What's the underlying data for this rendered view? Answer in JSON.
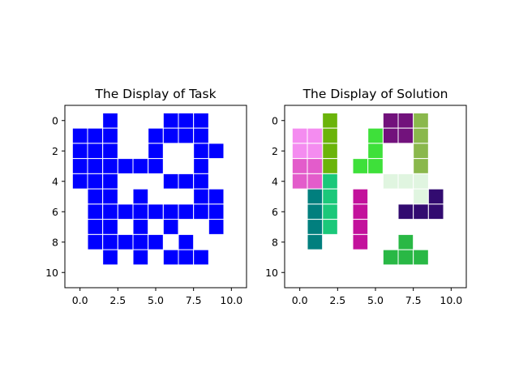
{
  "chart_data": [
    {
      "type": "heatmap",
      "title": "The Display of Task",
      "xlim": [
        -1,
        11
      ],
      "ylim": [
        11,
        -1
      ],
      "xticks": [
        0.0,
        2.5,
        5.0,
        7.5,
        10.0
      ],
      "xtick_labels": [
        "0.0",
        "2.5",
        "5.0",
        "7.5",
        "10.0"
      ],
      "yticks": [
        0,
        2,
        4,
        6,
        8,
        10
      ],
      "ytick_labels": [
        "0",
        "2",
        "4",
        "6",
        "8",
        "10"
      ],
      "grid": false,
      "cells": [
        {
          "x": 2,
          "y": 0,
          "color": "#0000ff"
        },
        {
          "x": 6,
          "y": 0,
          "color": "#0000ff"
        },
        {
          "x": 7,
          "y": 0,
          "color": "#0000ff"
        },
        {
          "x": 8,
          "y": 0,
          "color": "#0000ff"
        },
        {
          "x": 0,
          "y": 1,
          "color": "#0000ff"
        },
        {
          "x": 1,
          "y": 1,
          "color": "#0000ff"
        },
        {
          "x": 2,
          "y": 1,
          "color": "#0000ff"
        },
        {
          "x": 5,
          "y": 1,
          "color": "#0000ff"
        },
        {
          "x": 6,
          "y": 1,
          "color": "#0000ff"
        },
        {
          "x": 7,
          "y": 1,
          "color": "#0000ff"
        },
        {
          "x": 8,
          "y": 1,
          "color": "#0000ff"
        },
        {
          "x": 0,
          "y": 2,
          "color": "#0000ff"
        },
        {
          "x": 1,
          "y": 2,
          "color": "#0000ff"
        },
        {
          "x": 2,
          "y": 2,
          "color": "#0000ff"
        },
        {
          "x": 5,
          "y": 2,
          "color": "#0000ff"
        },
        {
          "x": 8,
          "y": 2,
          "color": "#0000ff"
        },
        {
          "x": 9,
          "y": 2,
          "color": "#0000ff"
        },
        {
          "x": 0,
          "y": 3,
          "color": "#0000ff"
        },
        {
          "x": 1,
          "y": 3,
          "color": "#0000ff"
        },
        {
          "x": 2,
          "y": 3,
          "color": "#0000ff"
        },
        {
          "x": 3,
          "y": 3,
          "color": "#0000ff"
        },
        {
          "x": 4,
          "y": 3,
          "color": "#0000ff"
        },
        {
          "x": 5,
          "y": 3,
          "color": "#0000ff"
        },
        {
          "x": 8,
          "y": 3,
          "color": "#0000ff"
        },
        {
          "x": 0,
          "y": 4,
          "color": "#0000ff"
        },
        {
          "x": 1,
          "y": 4,
          "color": "#0000ff"
        },
        {
          "x": 2,
          "y": 4,
          "color": "#0000ff"
        },
        {
          "x": 6,
          "y": 4,
          "color": "#0000ff"
        },
        {
          "x": 7,
          "y": 4,
          "color": "#0000ff"
        },
        {
          "x": 8,
          "y": 4,
          "color": "#0000ff"
        },
        {
          "x": 1,
          "y": 5,
          "color": "#0000ff"
        },
        {
          "x": 2,
          "y": 5,
          "color": "#0000ff"
        },
        {
          "x": 4,
          "y": 5,
          "color": "#0000ff"
        },
        {
          "x": 8,
          "y": 5,
          "color": "#0000ff"
        },
        {
          "x": 9,
          "y": 5,
          "color": "#0000ff"
        },
        {
          "x": 1,
          "y": 6,
          "color": "#0000ff"
        },
        {
          "x": 2,
          "y": 6,
          "color": "#0000ff"
        },
        {
          "x": 3,
          "y": 6,
          "color": "#0000ff"
        },
        {
          "x": 4,
          "y": 6,
          "color": "#0000ff"
        },
        {
          "x": 5,
          "y": 6,
          "color": "#0000ff"
        },
        {
          "x": 6,
          "y": 6,
          "color": "#0000ff"
        },
        {
          "x": 7,
          "y": 6,
          "color": "#0000ff"
        },
        {
          "x": 8,
          "y": 6,
          "color": "#0000ff"
        },
        {
          "x": 9,
          "y": 6,
          "color": "#0000ff"
        },
        {
          "x": 1,
          "y": 7,
          "color": "#0000ff"
        },
        {
          "x": 2,
          "y": 7,
          "color": "#0000ff"
        },
        {
          "x": 4,
          "y": 7,
          "color": "#0000ff"
        },
        {
          "x": 6,
          "y": 7,
          "color": "#0000ff"
        },
        {
          "x": 9,
          "y": 7,
          "color": "#0000ff"
        },
        {
          "x": 1,
          "y": 8,
          "color": "#0000ff"
        },
        {
          "x": 2,
          "y": 8,
          "color": "#0000ff"
        },
        {
          "x": 3,
          "y": 8,
          "color": "#0000ff"
        },
        {
          "x": 4,
          "y": 8,
          "color": "#0000ff"
        },
        {
          "x": 5,
          "y": 8,
          "color": "#0000ff"
        },
        {
          "x": 7,
          "y": 8,
          "color": "#0000ff"
        },
        {
          "x": 2,
          "y": 9,
          "color": "#0000ff"
        },
        {
          "x": 4,
          "y": 9,
          "color": "#0000ff"
        },
        {
          "x": 6,
          "y": 9,
          "color": "#0000ff"
        },
        {
          "x": 7,
          "y": 9,
          "color": "#0000ff"
        },
        {
          "x": 8,
          "y": 9,
          "color": "#0000ff"
        }
      ]
    },
    {
      "type": "heatmap",
      "title": "The Display of Solution",
      "xlim": [
        -1,
        11
      ],
      "ylim": [
        11,
        -1
      ],
      "xticks": [
        0.0,
        2.5,
        5.0,
        7.5,
        10.0
      ],
      "xtick_labels": [
        "0.0",
        "2.5",
        "5.0",
        "7.5",
        "10.0"
      ],
      "yticks": [
        0,
        2,
        4,
        6,
        8,
        10
      ],
      "ytick_labels": [
        "0",
        "2",
        "4",
        "6",
        "8",
        "10"
      ],
      "grid": false,
      "cells": [
        {
          "x": 2,
          "y": 0,
          "color": "#6bb40a"
        },
        {
          "x": 2,
          "y": 1,
          "color": "#6bb40a"
        },
        {
          "x": 2,
          "y": 2,
          "color": "#6bb40a"
        },
        {
          "x": 2,
          "y": 3,
          "color": "#6bb40a"
        },
        {
          "x": 6,
          "y": 0,
          "color": "#72127c"
        },
        {
          "x": 7,
          "y": 0,
          "color": "#72127c"
        },
        {
          "x": 6,
          "y": 1,
          "color": "#72127c"
        },
        {
          "x": 7,
          "y": 1,
          "color": "#72127c"
        },
        {
          "x": 8,
          "y": 0,
          "color": "#8ab84c"
        },
        {
          "x": 8,
          "y": 1,
          "color": "#8ab84c"
        },
        {
          "x": 8,
          "y": 2,
          "color": "#8ab84c"
        },
        {
          "x": 8,
          "y": 3,
          "color": "#8ab84c"
        },
        {
          "x": 0,
          "y": 1,
          "color": "#f48cf0"
        },
        {
          "x": 1,
          "y": 1,
          "color": "#f48cf0"
        },
        {
          "x": 0,
          "y": 2,
          "color": "#f48cf0"
        },
        {
          "x": 1,
          "y": 2,
          "color": "#f48cf0"
        },
        {
          "x": 0,
          "y": 3,
          "color": "#e35ccb"
        },
        {
          "x": 1,
          "y": 3,
          "color": "#e35ccb"
        },
        {
          "x": 0,
          "y": 4,
          "color": "#e35ccb"
        },
        {
          "x": 1,
          "y": 4,
          "color": "#e35ccb"
        },
        {
          "x": 5,
          "y": 1,
          "color": "#3ee03a"
        },
        {
          "x": 5,
          "y": 2,
          "color": "#3ee03a"
        },
        {
          "x": 4,
          "y": 3,
          "color": "#3ee03a"
        },
        {
          "x": 5,
          "y": 3,
          "color": "#3ee03a"
        },
        {
          "x": 2,
          "y": 4,
          "color": "#1bc87a"
        },
        {
          "x": 2,
          "y": 5,
          "color": "#1bc87a"
        },
        {
          "x": 2,
          "y": 6,
          "color": "#1bc87a"
        },
        {
          "x": 2,
          "y": 7,
          "color": "#1bc87a"
        },
        {
          "x": 1,
          "y": 5,
          "color": "#017f7e"
        },
        {
          "x": 1,
          "y": 6,
          "color": "#017f7e"
        },
        {
          "x": 1,
          "y": 7,
          "color": "#017f7e"
        },
        {
          "x": 1,
          "y": 8,
          "color": "#017f7e"
        },
        {
          "x": 6,
          "y": 4,
          "color": "#e0f5e0"
        },
        {
          "x": 7,
          "y": 4,
          "color": "#e0f5e0"
        },
        {
          "x": 8,
          "y": 4,
          "color": "#e0f5e0"
        },
        {
          "x": 8,
          "y": 5,
          "color": "#e0f5e0"
        },
        {
          "x": 4,
          "y": 5,
          "color": "#c3129c"
        },
        {
          "x": 4,
          "y": 6,
          "color": "#c3129c"
        },
        {
          "x": 4,
          "y": 7,
          "color": "#c3129c"
        },
        {
          "x": 4,
          "y": 8,
          "color": "#c3129c"
        },
        {
          "x": 9,
          "y": 5,
          "color": "#320b70"
        },
        {
          "x": 7,
          "y": 6,
          "color": "#320b70"
        },
        {
          "x": 8,
          "y": 6,
          "color": "#320b70"
        },
        {
          "x": 9,
          "y": 6,
          "color": "#320b70"
        },
        {
          "x": 7,
          "y": 8,
          "color": "#29b845"
        },
        {
          "x": 6,
          "y": 9,
          "color": "#29b845"
        },
        {
          "x": 7,
          "y": 9,
          "color": "#29b845"
        },
        {
          "x": 8,
          "y": 9,
          "color": "#29b845"
        }
      ]
    }
  ]
}
